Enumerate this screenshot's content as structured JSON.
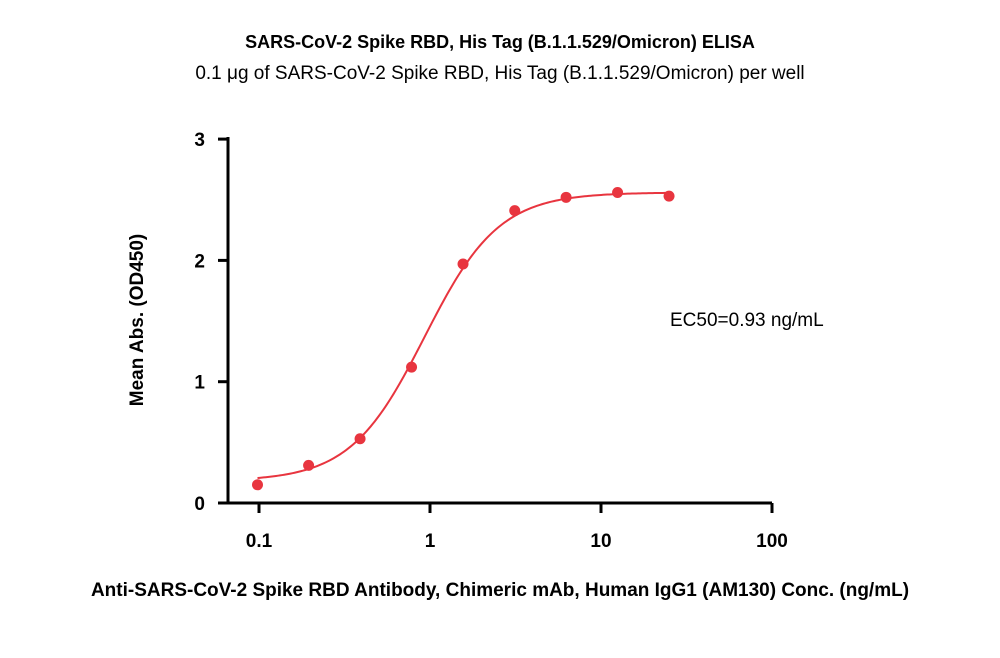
{
  "chart_data": {
    "type": "scatter",
    "title": "SARS-CoV-2 Spike RBD, His Tag (B.1.1.529/Omicron) ELISA",
    "subtitle": "0.1 μg of SARS-CoV-2 Spike RBD, His Tag (B.1.1.529/Omicron) per well",
    "xlabel": "Anti-SARS-CoV-2 Spike RBD Antibody, Chimeric mAb, Human IgG1 (AM130) Conc. (ng/mL)",
    "ylabel": "Mean Abs. (OD450)",
    "x_scale": "log",
    "xlim": [
      0.08,
      100
    ],
    "ylim": [
      0,
      3
    ],
    "x_ticks": [
      {
        "value": 0.1,
        "label": "0.1"
      },
      {
        "value": 1,
        "label": "1"
      },
      {
        "value": 10,
        "label": "10"
      },
      {
        "value": 100,
        "label": "100"
      }
    ],
    "y_ticks": [
      {
        "value": 0,
        "label": "0"
      },
      {
        "value": 1,
        "label": "1"
      },
      {
        "value": 2,
        "label": "2"
      },
      {
        "value": 3,
        "label": "3"
      }
    ],
    "series": [
      {
        "color": "#e8353f",
        "points": [
          {
            "x": 0.098,
            "y": 0.15
          },
          {
            "x": 0.195,
            "y": 0.31
          },
          {
            "x": 0.39,
            "y": 0.53
          },
          {
            "x": 0.78,
            "y": 1.12
          },
          {
            "x": 1.56,
            "y": 1.97
          },
          {
            "x": 3.13,
            "y": 2.41
          },
          {
            "x": 6.25,
            "y": 2.52
          },
          {
            "x": 12.5,
            "y": 2.56
          },
          {
            "x": 25,
            "y": 2.53
          }
        ],
        "fit": {
          "model": "4PL",
          "bottom": 0.18,
          "top": 2.56,
          "ec50": 0.93,
          "hill": 2.0,
          "x_range": [
            0.098,
            25
          ]
        }
      }
    ],
    "annotation": "EC50=0.93 ng/mL",
    "grid": false,
    "legend": "none"
  }
}
